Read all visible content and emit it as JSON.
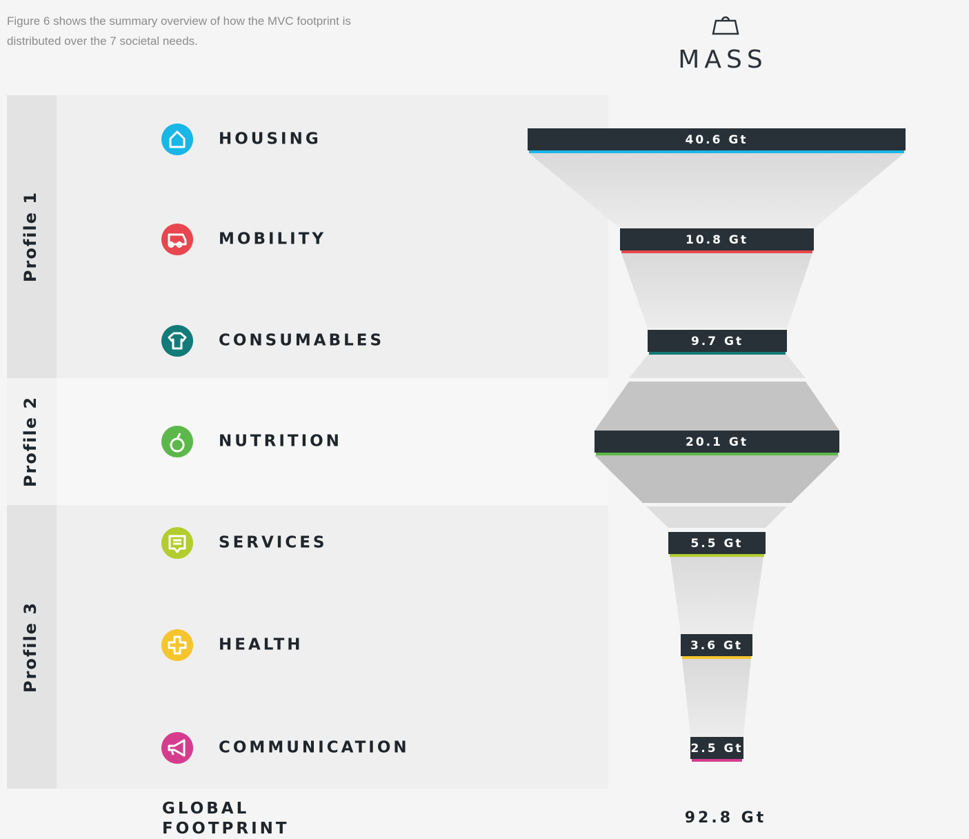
{
  "intro": "Figure 6 shows the summary overview of how the MVC footprint is distributed over the 7 societal needs.",
  "header": {
    "title": "MASS"
  },
  "profiles": [
    "Profile 1",
    "Profile 2",
    "Profile 3"
  ],
  "needs": [
    {
      "label": "HOUSING",
      "value": "40.6 Gt",
      "color": "#19b6e8"
    },
    {
      "label": "MOBILITY",
      "value": "10.8 Gt",
      "color": "#e8474f"
    },
    {
      "label": "CONSUMABLES",
      "value": "9.7 Gt",
      "color": "#127a78"
    },
    {
      "label": "NUTRITION",
      "value": "20.1 Gt",
      "color": "#5cb84a"
    },
    {
      "label": "SERVICES",
      "value": "5.5 Gt",
      "color": "#b3cc2e"
    },
    {
      "label": "HEALTH",
      "value": "3.6 Gt",
      "color": "#f6c42c"
    },
    {
      "label": "COMMUNICATION",
      "value": "2.5 Gt",
      "color": "#d63c8e"
    }
  ],
  "total": {
    "label": "GLOBAL FOOTPRINT",
    "value": "92.8 Gt"
  }
}
